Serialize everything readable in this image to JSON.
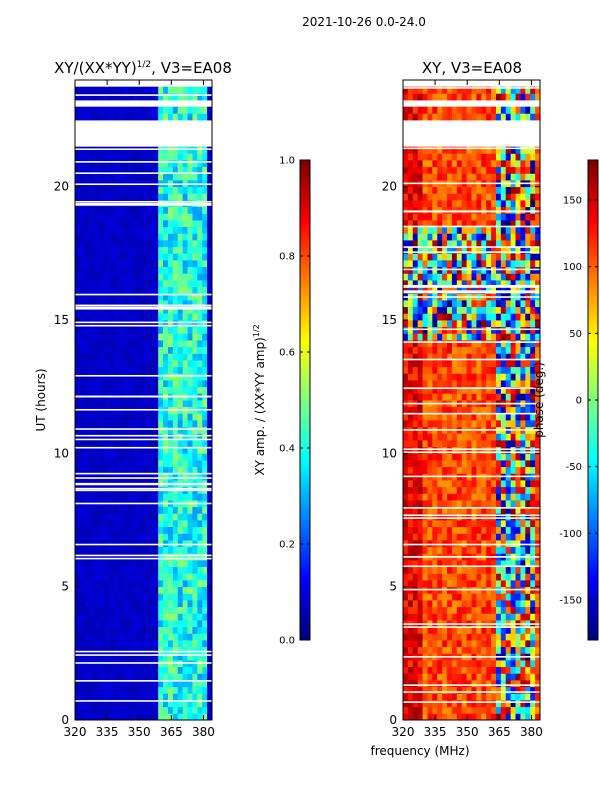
{
  "suptitle": "2021-10-26 0.0-24.0",
  "colors": {
    "background": "#ffffff",
    "axis": "#000000",
    "gap": "#ffffff",
    "jet": [
      "#00007f",
      "#0000ff",
      "#007fff",
      "#00ffff",
      "#7fff7f",
      "#ffff00",
      "#ff7f00",
      "#ff0000",
      "#7f0000"
    ]
  },
  "chart_data": [
    {
      "type": "heatmap",
      "title_base": "XY/(XX*YY)",
      "title_sup": "1/2",
      "title_tail": ", V3=EA08",
      "xlabel": "",
      "ylabel": "UT (hours)",
      "xlim": [
        320,
        384
      ],
      "ylim": [
        0,
        24
      ],
      "xticks": [
        "320",
        "335",
        "350",
        "365",
        "380"
      ],
      "yticks": [
        "0",
        "5",
        "10",
        "15",
        "20"
      ],
      "colorbar": {
        "label_base": "XY amp. / (XX*YY amp)",
        "label_sup": "1/2",
        "range": [
          0.0,
          1.0
        ],
        "ticks": [
          "0.0",
          "0.2",
          "0.4",
          "0.6",
          "0.8",
          "1.0"
        ]
      },
      "data_gaps_hours": [
        [
          21.4,
          22.4
        ],
        [
          23.0,
          23.2
        ],
        [
          23.8,
          24.0
        ]
      ],
      "rfi_band_mhz": [
        360,
        382
      ],
      "typical_value_outside_band": 0.05,
      "typical_value_in_band": 0.4
    },
    {
      "type": "heatmap",
      "title": "XY, V3=EA08",
      "xlabel": "frequency (MHz)",
      "ylabel": "",
      "xlim": [
        320,
        384
      ],
      "ylim": [
        0,
        24
      ],
      "xticks": [
        "320",
        "335",
        "350",
        "365",
        "380"
      ],
      "yticks": [
        "0",
        "5",
        "10",
        "15",
        "20"
      ],
      "colorbar": {
        "label": "phase (deg.)",
        "range": [
          -180,
          180
        ],
        "ticks": [
          "-150",
          "-100",
          "-50",
          "0",
          "50",
          "100",
          "150"
        ]
      },
      "data_gaps_hours": [
        [
          21.4,
          22.4
        ],
        [
          23.0,
          23.2
        ],
        [
          23.8,
          24.0
        ]
      ],
      "rfi_band_mhz": [
        360,
        382
      ],
      "noisy_interval_hours": [
        14.3,
        18.5
      ],
      "typical_phase_deg": 110
    }
  ]
}
